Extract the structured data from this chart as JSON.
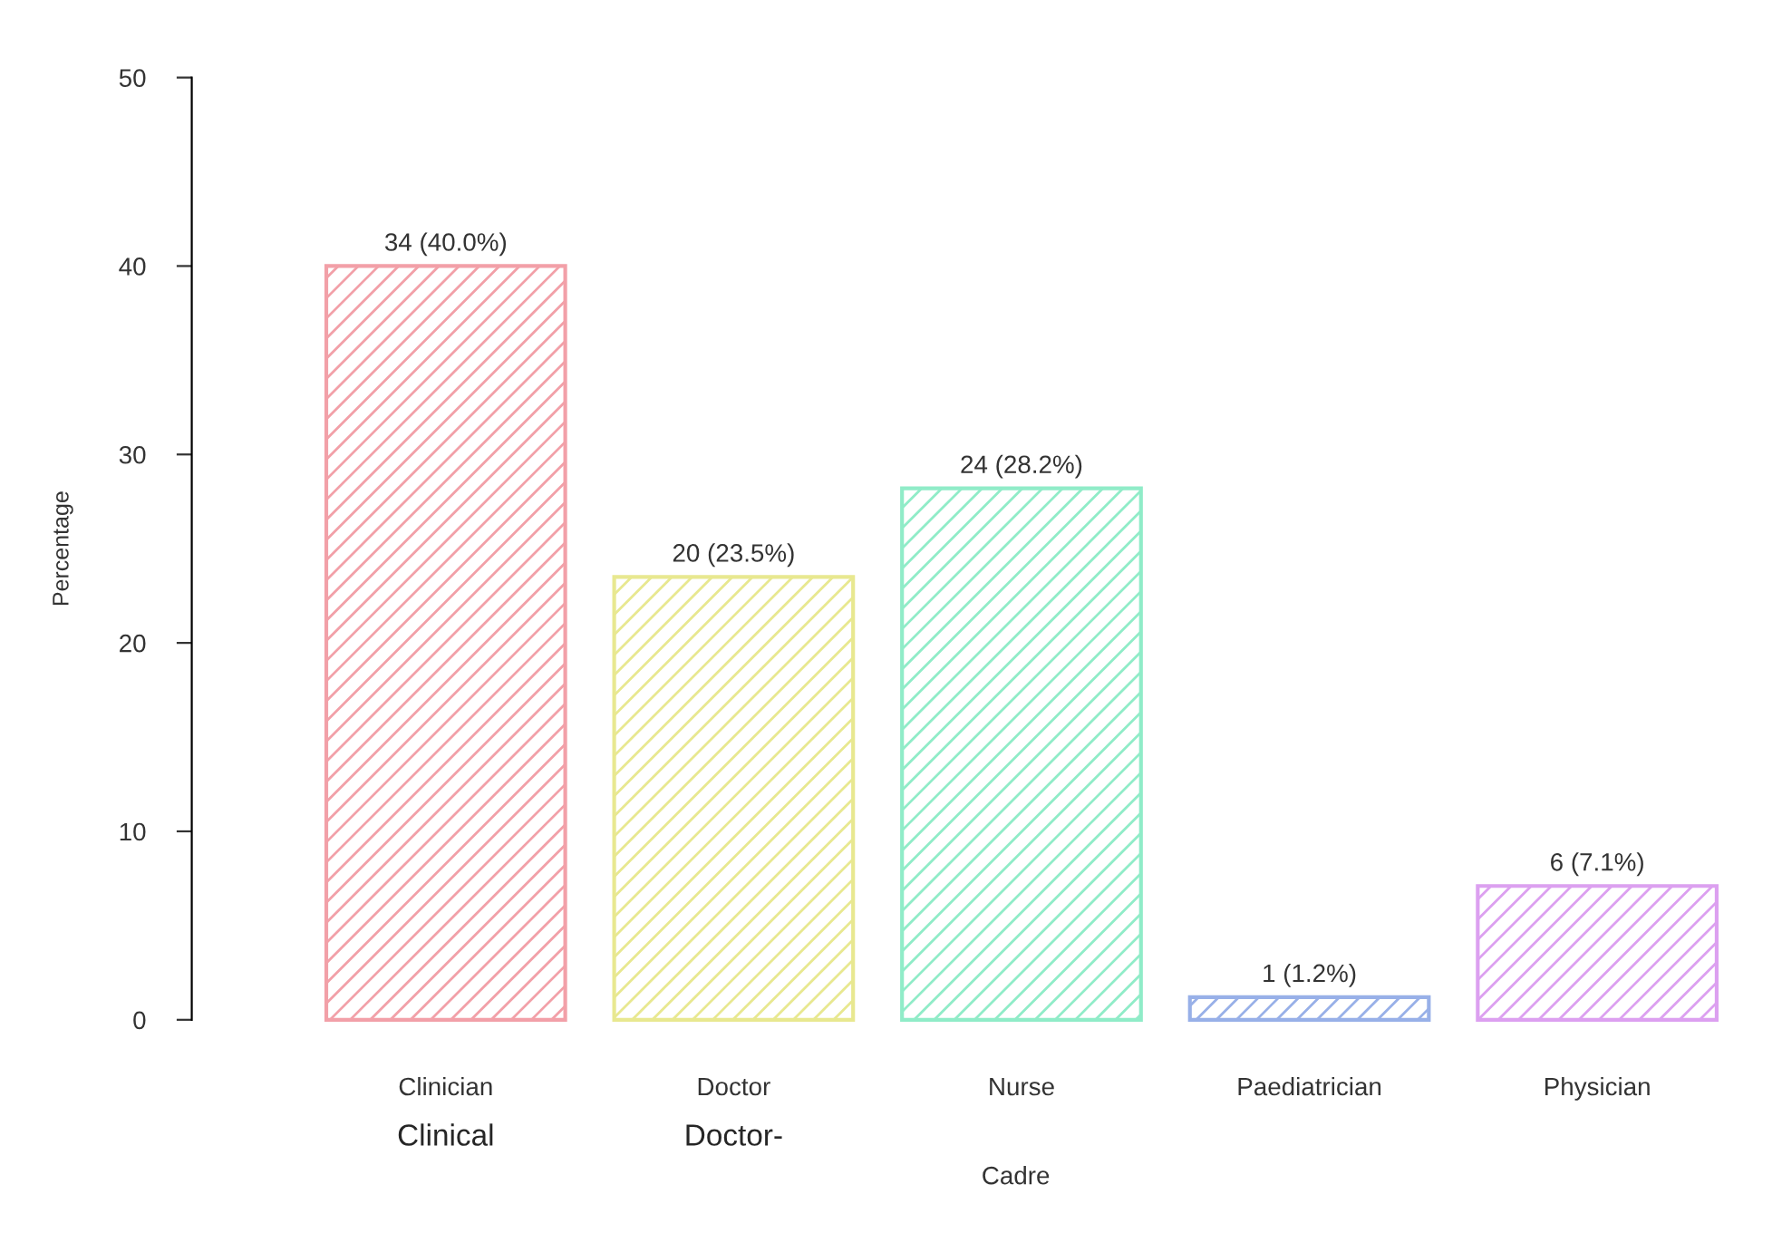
{
  "chart_data": {
    "type": "bar",
    "xlabel": "Cadre",
    "ylabel": "Percentage",
    "categories": [
      "Clinician",
      "Doctor",
      "Nurse",
      "Paediatrician",
      "Physician"
    ],
    "values": [
      40.0,
      23.5,
      28.2,
      1.2,
      7.1
    ],
    "value_labels": [
      "34 (40.0%)",
      "20 (23.5%)",
      "24 (28.2%)",
      "1 (1.2%)",
      "6 (7.1%)"
    ],
    "colors": [
      "#f2a0a8",
      "#e8e890",
      "#90ecc8",
      "#98b0e8",
      "#dca0f0"
    ],
    "annotations": [
      "Clinical",
      "Doctor-"
    ],
    "ylim": [
      0,
      50
    ],
    "yticks": [
      0,
      10,
      20,
      30,
      40,
      50
    ],
    "grid": false,
    "legend": false
  }
}
